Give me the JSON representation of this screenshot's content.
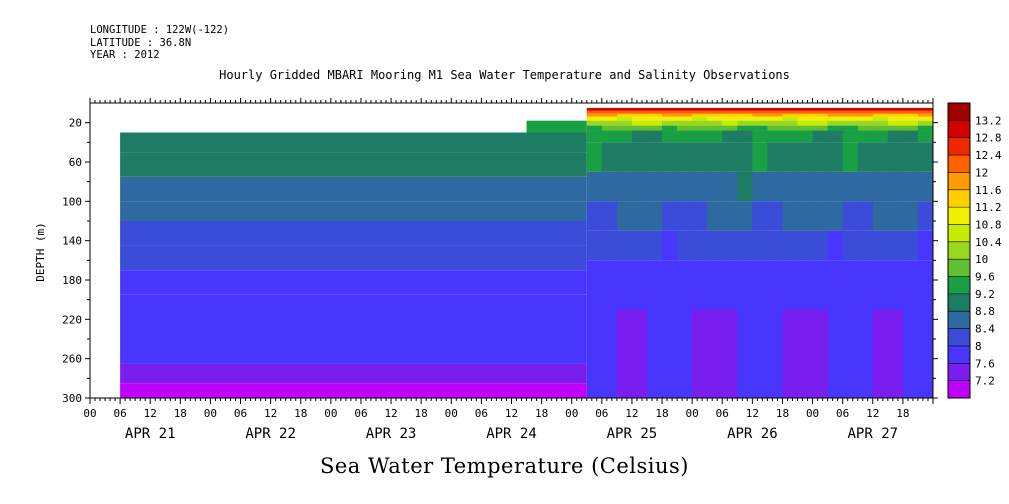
{
  "header": {
    "longitude": "LONGITUDE : 122W(-122)",
    "latitude": "LATITUDE : 36.8N",
    "year": "YEAR : 2012"
  },
  "chart_data": {
    "type": "heatmap",
    "title": "Hourly Gridded MBARI Mooring M1 Sea Water Temperature and Salinity Observations",
    "xlabel": "Sea Water Temperature (Celsius)",
    "ylabel": "DEPTH (m)",
    "x_hour_ticks": [
      "00",
      "06",
      "12",
      "18",
      "00",
      "06",
      "12",
      "18",
      "00",
      "06",
      "12",
      "18",
      "00",
      "06",
      "12",
      "18",
      "00",
      "06",
      "12",
      "18",
      "00",
      "06",
      "12",
      "18",
      "00",
      "06",
      "12",
      "18"
    ],
    "x_day_labels": [
      "APR 21",
      "APR 22",
      "APR 23",
      "APR 24",
      "APR 25",
      "APR 26",
      "APR 27"
    ],
    "y_ticks": [
      20,
      60,
      100,
      140,
      180,
      220,
      260,
      300
    ],
    "ylim": [
      0,
      300
    ],
    "colorbar_labels": [
      "13.2",
      "12.8",
      "12.4",
      "12",
      "11.6",
      "11.2",
      "10.8",
      "10.4",
      "10",
      "9.6",
      "9.2",
      "8.8",
      "8.4",
      "8",
      "7.6",
      "7.2"
    ],
    "colorbar_colors": [
      "#a00000",
      "#d40000",
      "#f02800",
      "#ff6000",
      "#ff9a00",
      "#ffd000",
      "#f0f000",
      "#c8ec00",
      "#9ad81e",
      "#60c030",
      "#1aa044",
      "#1e7c64",
      "#2e6aa0",
      "#3a4cd8",
      "#4836ff",
      "#7a1ef0",
      "#c000ff"
    ],
    "colorbar_range": [
      7.0,
      13.6
    ],
    "profile_before_apr25": [
      {
        "depth_top": 30,
        "depth_bottom": 50,
        "temp": 9.2
      },
      {
        "depth_top": 50,
        "depth_bottom": 75,
        "temp": 9.0
      },
      {
        "depth_top": 75,
        "depth_bottom": 100,
        "temp": 8.8
      },
      {
        "depth_top": 100,
        "depth_bottom": 120,
        "temp": 8.6
      },
      {
        "depth_top": 120,
        "depth_bottom": 145,
        "temp": 8.4
      },
      {
        "depth_top": 145,
        "depth_bottom": 170,
        "temp": 8.2
      },
      {
        "depth_top": 170,
        "depth_bottom": 195,
        "temp": 8.0
      },
      {
        "depth_top": 195,
        "depth_bottom": 265,
        "temp": 7.8
      },
      {
        "depth_top": 265,
        "depth_bottom": 285,
        "temp": 7.6
      },
      {
        "depth_top": 285,
        "depth_bottom": 300,
        "temp": 7.3
      }
    ],
    "profile_after_apr25": [
      {
        "depth_top": 5,
        "depth_bottom": 8,
        "temp": 13.0
      },
      {
        "depth_top": 8,
        "depth_bottom": 11,
        "temp": 12.2
      },
      {
        "depth_top": 11,
        "depth_bottom": 14,
        "temp": 11.6
      },
      {
        "depth_top": 14,
        "depth_bottom": 18,
        "temp": 11.0
      },
      {
        "depth_top": 18,
        "depth_bottom": 23,
        "temp": 10.4
      },
      {
        "depth_top": 23,
        "depth_bottom": 28,
        "temp": 9.8
      },
      {
        "depth_top": 28,
        "depth_bottom": 40,
        "temp": 9.4
      },
      {
        "depth_top": 40,
        "depth_bottom": 70,
        "temp": 9.2
      },
      {
        "depth_top": 70,
        "depth_bottom": 100,
        "temp": 8.8
      },
      {
        "depth_top": 100,
        "depth_bottom": 130,
        "temp": 8.6
      },
      {
        "depth_top": 130,
        "depth_bottom": 160,
        "temp": 8.3
      },
      {
        "depth_top": 160,
        "depth_bottom": 210,
        "temp": 8.0
      },
      {
        "depth_top": 210,
        "depth_bottom": 300,
        "temp": 7.8
      }
    ]
  }
}
